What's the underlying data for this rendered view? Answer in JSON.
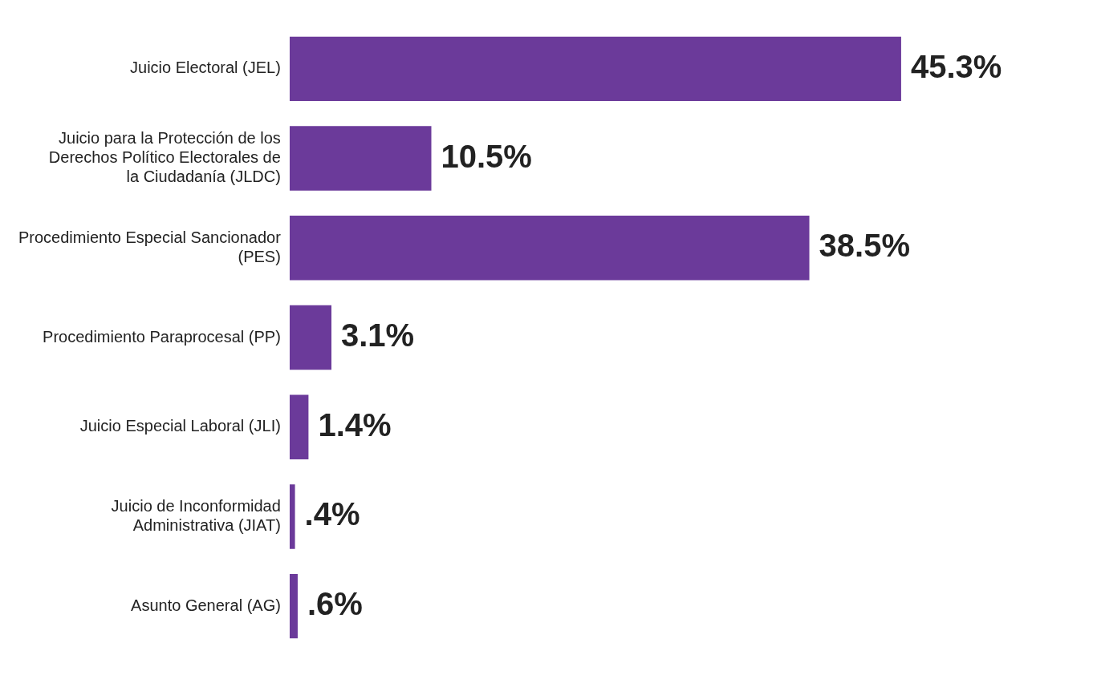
{
  "chart_data": {
    "type": "bar",
    "orientation": "horizontal",
    "categories": [
      "Juicio Electoral (JEL)",
      "Juicio para la Protección de los Derechos Político Electorales de la Ciudadanía (JLDC)",
      "Procedimiento Especial Sancionador (PES)",
      "Procedimiento Paraprocesal (PP)",
      "Juicio Especial Laboral (JLI)",
      "Juicio de Inconformidad Administrativa (JIAT)",
      "Asunto General (AG)"
    ],
    "values": [
      45.3,
      10.5,
      38.5,
      3.1,
      1.4,
      0.4,
      0.6
    ],
    "value_labels": [
      "45.3%",
      "10.5%",
      "38.5%",
      "3.1%",
      "1.4%",
      ".4%",
      ".6%"
    ],
    "color": "#6b3a9a",
    "tick_labels": "y"
  }
}
